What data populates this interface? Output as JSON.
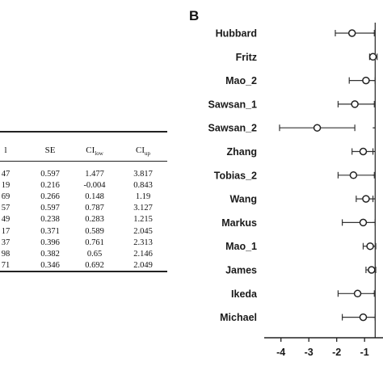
{
  "table": {
    "headers": {
      "col0": "l",
      "se": "SE",
      "ci_low_main": "CI",
      "ci_low_sub": "low",
      "ci_up_main": "CI",
      "ci_up_sub": "up"
    },
    "rows": [
      {
        "c0": "47",
        "se": "0.597",
        "ci_low": "1.477",
        "ci_up": "3.817"
      },
      {
        "c0": "19",
        "se": "0.216",
        "ci_low": "-0.004",
        "ci_up": "0.843"
      },
      {
        "c0": "69",
        "se": "0.266",
        "ci_low": "0.148",
        "ci_up": "1.19"
      },
      {
        "c0": "57",
        "se": "0.597",
        "ci_low": "0.787",
        "ci_up": "3.127"
      },
      {
        "c0": "49",
        "se": "0.238",
        "ci_low": "0.283",
        "ci_up": "1.215"
      },
      {
        "c0": "17",
        "se": "0.371",
        "ci_low": "0.589",
        "ci_up": "2.045"
      },
      {
        "c0": "37",
        "se": "0.396",
        "ci_low": "0.761",
        "ci_up": "2.313"
      },
      {
        "c0": "98",
        "se": "0.382",
        "ci_low": "0.65",
        "ci_up": "2.146"
      },
      {
        "c0": "71",
        "se": "0.346",
        "ci_low": "0.692",
        "ci_up": "2.049"
      }
    ]
  },
  "chart_data": {
    "type": "scatter",
    "panel_label": "B",
    "xlabel": "",
    "ylabel": "",
    "xlim": [
      -4.6,
      -0.6
    ],
    "x_ticks": [
      -4,
      -3,
      -2,
      -1
    ],
    "x_tick_labels": [
      "-4",
      "-3",
      "-2",
      "-1"
    ],
    "studies": [
      {
        "name": "Hubbard",
        "estimate": -1.45,
        "low": -2.05,
        "high": -0.65
      },
      {
        "name": "Fritz",
        "estimate": -0.7,
        "low": -0.82,
        "high": -0.55
      },
      {
        "name": "Mao_2",
        "estimate": -0.95,
        "low": -1.55,
        "high": -0.62
      },
      {
        "name": "Sawsan_1",
        "estimate": -1.35,
        "low": -1.95,
        "high": -0.65
      },
      {
        "name": "Sawsan_2",
        "estimate": -2.7,
        "low": -4.05,
        "high": -1.35
      },
      {
        "name": "Zhang",
        "estimate": -1.05,
        "low": -1.45,
        "high": -0.7
      },
      {
        "name": "Tobias_2",
        "estimate": -1.4,
        "low": -1.95,
        "high": -0.65
      },
      {
        "name": "Wang",
        "estimate": -0.95,
        "low": -1.3,
        "high": -0.7
      },
      {
        "name": "Markus",
        "estimate": -1.05,
        "low": -1.8,
        "high": -0.62
      },
      {
        "name": "Mao_1",
        "estimate": -0.8,
        "low": -1.05,
        "high": -0.6
      },
      {
        "name": "James",
        "estimate": -0.75,
        "low": -0.95,
        "high": -0.6
      },
      {
        "name": "Ikeda",
        "estimate": -1.25,
        "low": -1.95,
        "high": -0.65
      },
      {
        "name": "Michael",
        "estimate": -1.05,
        "low": -1.8,
        "high": -0.62
      }
    ]
  }
}
